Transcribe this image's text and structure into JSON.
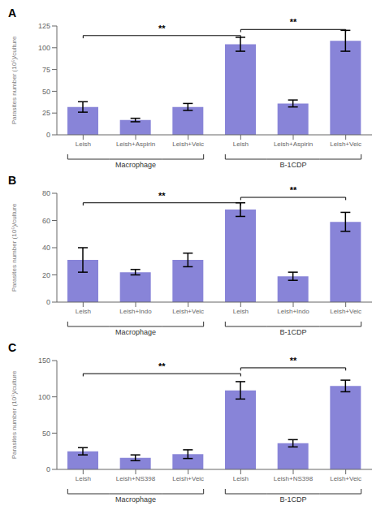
{
  "chart_data": [
    {
      "type": "bar",
      "title": "A",
      "ylabel": "Parasites number (10⁵)/culture",
      "categories": [
        "Leish",
        "Leish+Aspirin",
        "Leish+Veic",
        "Leish",
        "Leish+Aspirin",
        "Leish+Veic"
      ],
      "values": [
        32,
        17,
        32,
        104,
        36,
        108
      ],
      "errors": [
        6,
        2,
        4,
        8,
        4,
        12
      ],
      "color": "#8884d8",
      "ylim": [
        0,
        125
      ],
      "yticks": [
        0,
        25,
        50,
        75,
        100,
        125
      ],
      "grid": false,
      "annotations": [
        {
          "label": "**",
          "between": [
            0,
            3
          ],
          "y": 114
        },
        {
          "label": "**",
          "between": [
            3,
            5
          ],
          "y": 121
        }
      ],
      "groups": [
        {
          "label": "Macrophage",
          "between": [
            0,
            2
          ]
        },
        {
          "label": "B-1CDP",
          "between": [
            3,
            5
          ]
        }
      ]
    },
    {
      "type": "bar",
      "title": "B",
      "ylabel": "Parasites number (10⁵)/culture",
      "categories": [
        "Leish",
        "Leish+Indo",
        "Leish+Veic",
        "Leish",
        "Leish+Indo",
        "Leish+Veic"
      ],
      "values": [
        31,
        22,
        31,
        68,
        19,
        59
      ],
      "errors": [
        9,
        2,
        5,
        5,
        3,
        7
      ],
      "color": "#8884d8",
      "ylim": [
        0,
        80
      ],
      "yticks": [
        0,
        20,
        40,
        60,
        80
      ],
      "grid": false,
      "annotations": [
        {
          "label": "**",
          "between": [
            0,
            3
          ],
          "y": 73
        },
        {
          "label": "**",
          "between": [
            3,
            5
          ],
          "y": 77
        }
      ],
      "groups": [
        {
          "label": "Macrophage",
          "between": [
            0,
            2
          ]
        },
        {
          "label": "B-1CDP",
          "between": [
            3,
            5
          ]
        }
      ]
    },
    {
      "type": "bar",
      "title": "C",
      "ylabel": "Parasites number (10⁵)/culture",
      "categories": [
        "Leish",
        "Leish+NS398",
        "Leish+Veic",
        "Leish",
        "Leish+NS398",
        "Leish+Veic"
      ],
      "values": [
        25,
        16,
        21,
        109,
        36,
        115
      ],
      "errors": [
        5,
        4,
        6,
        12,
        5,
        8
      ],
      "color": "#8884d8",
      "ylim": [
        0,
        150
      ],
      "yticks": [
        0,
        50,
        100,
        150
      ],
      "grid": false,
      "annotations": [
        {
          "label": "**",
          "between": [
            0,
            3
          ],
          "y": 132
        },
        {
          "label": "**",
          "between": [
            3,
            5
          ],
          "y": 140
        }
      ],
      "groups": [
        {
          "label": "Macrophage",
          "between": [
            0,
            2
          ]
        },
        {
          "label": "B-1CDP",
          "between": [
            3,
            5
          ]
        }
      ]
    }
  ]
}
